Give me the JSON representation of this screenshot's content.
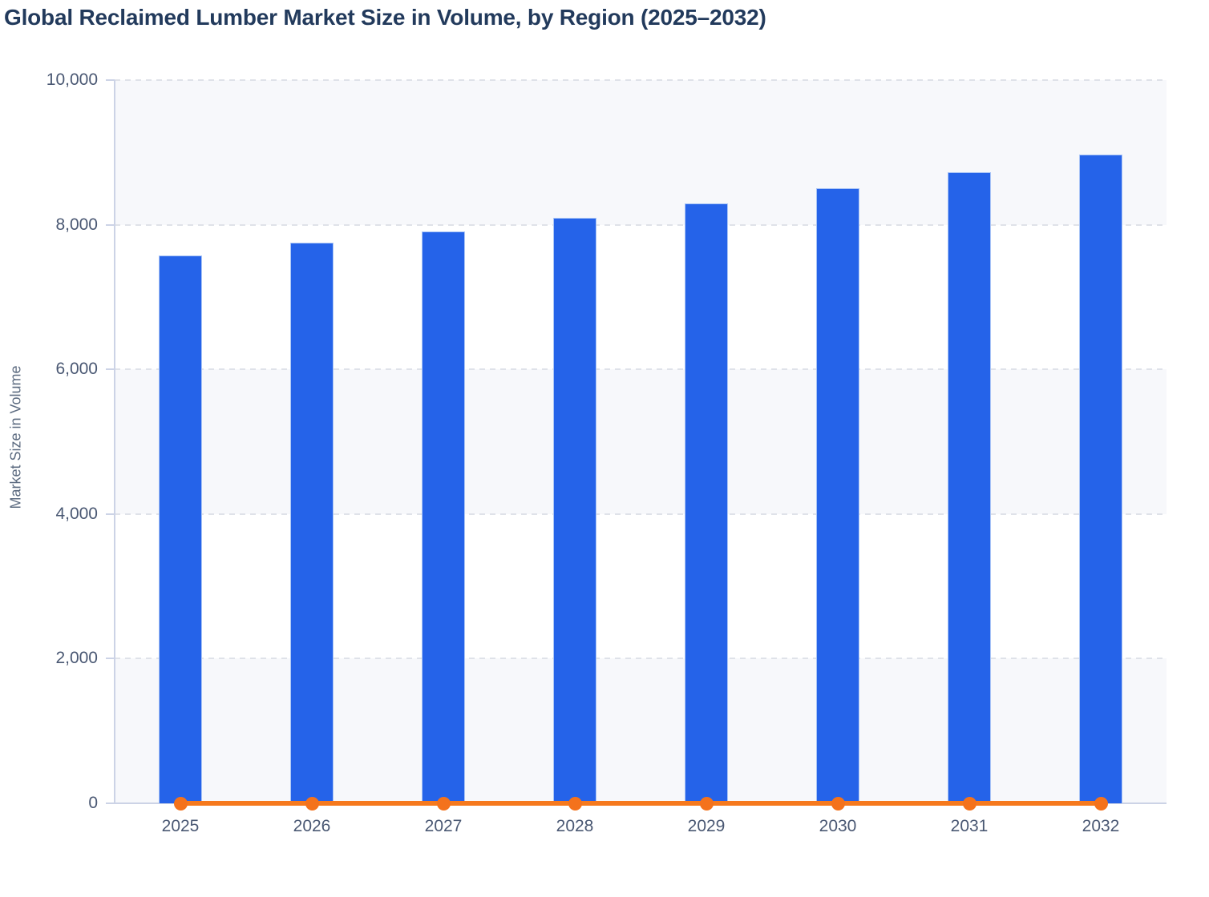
{
  "chart_data": {
    "type": "bar",
    "title": "Global Reclaimed Lumber Market Size in Volume, by Region (2025–2032)",
    "xlabel": "",
    "ylabel": "Market Size in Volume",
    "categories": [
      "2025",
      "2026",
      "2027",
      "2028",
      "2029",
      "2030",
      "2031",
      "2032"
    ],
    "series": [
      {
        "name": "market-size-columns",
        "type": "column",
        "color": "#2563e9",
        "values": [
          7580,
          7750,
          7910,
          8100,
          8290,
          8500,
          8730,
          8970
        ]
      },
      {
        "name": "baseline-line",
        "type": "line",
        "color": "#f6791d",
        "marker": "circle",
        "values": [
          0,
          0,
          0,
          0,
          0,
          0,
          0,
          0
        ]
      }
    ],
    "ylim": [
      0,
      10000
    ],
    "yticks": [
      0,
      2000,
      4000,
      6000,
      8000,
      10000
    ],
    "ytick_labels": [
      "0",
      "2,000",
      "4,000",
      "6,000",
      "8,000",
      "10,000"
    ],
    "grid": "horizontal-dashed",
    "legend": "none",
    "plot_bands": "alternating light fill between every other pair of gridlines"
  },
  "style": {
    "bar_fill": "#2563e9",
    "bar_border": "#aac5f6",
    "line_color": "#f6791d",
    "marker_color": "#f4721c",
    "axis_color": "#ccd3e6",
    "grid_color": "#dfe2e9",
    "band_fill": "#f7f8fb",
    "title_color": "#223a5c",
    "tick_label_color": "#4a5873",
    "axis_title_color": "#5c6b80",
    "background": "#ffffff"
  }
}
